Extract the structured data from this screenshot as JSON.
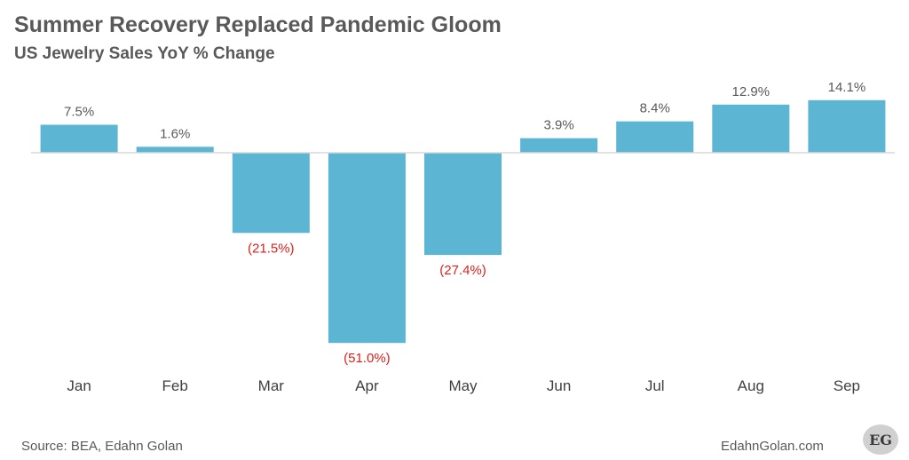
{
  "chart_data": {
    "type": "bar",
    "title": "Summer Recovery Replaced Pandemic Gloom",
    "subtitle": "US Jewelry Sales YoY % Change",
    "categories": [
      "Jan",
      "Feb",
      "Mar",
      "Apr",
      "May",
      "Jun",
      "Jul",
      "Aug",
      "Sep"
    ],
    "values": [
      7.5,
      1.6,
      -21.5,
      -51.0,
      -27.4,
      3.9,
      8.4,
      12.9,
      14.1
    ],
    "data_labels": [
      "7.5%",
      "1.6%",
      "(21.5%)",
      "(51.0%)",
      "(27.4%)",
      "3.9%",
      "8.4%",
      "12.9%",
      "14.1%"
    ],
    "xlabel": "",
    "ylabel": "",
    "ylim": [
      -51.0,
      14.1
    ],
    "grid": false,
    "legend": "none",
    "colors": {
      "bar": "#5bb5d3",
      "positive_label": "#595959",
      "negative_label": "#e0201b",
      "axis_line": "#d9d9d9"
    }
  },
  "footer": {
    "source": "Source: BEA, Edahn Golan",
    "site": "EdahnGolan.com",
    "logo_text": "EG"
  }
}
